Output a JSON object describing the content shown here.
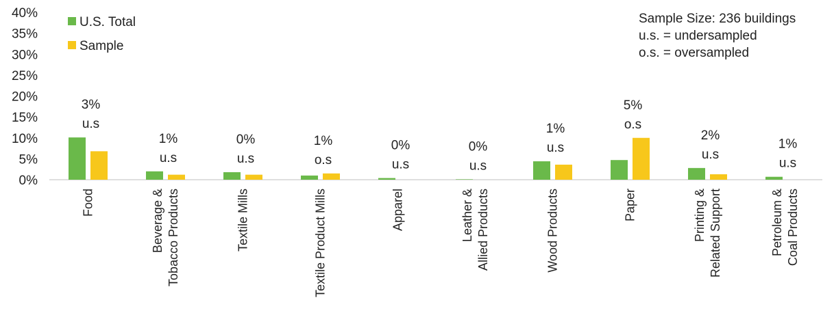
{
  "chart_data": {
    "type": "bar",
    "categories": [
      [
        "Food"
      ],
      [
        "Beverage &",
        "Tobacco Products"
      ],
      [
        "Textile Mills"
      ],
      [
        "Textile Product Mills"
      ],
      [
        "Apparel"
      ],
      [
        "Leather &",
        "Allied Products"
      ],
      [
        "Wood Products"
      ],
      [
        "Paper"
      ],
      [
        "Printing &",
        "Related Support"
      ],
      [
        "Petroleum &",
        "Coal Products"
      ]
    ],
    "series": [
      {
        "name": "U.S. Total",
        "color": "#6ab94a",
        "values": [
          10.1,
          2.0,
          1.8,
          1.0,
          0.4,
          0.1,
          4.4,
          4.7,
          2.8,
          0.7
        ]
      },
      {
        "name": "Sample",
        "color": "#f7c71b",
        "values": [
          6.8,
          1.2,
          1.2,
          1.5,
          0.0,
          0.0,
          3.6,
          10.0,
          1.3,
          0.0
        ]
      }
    ],
    "annotations": [
      {
        "value": "3%",
        "status": "u.s"
      },
      {
        "value": "1%",
        "status": "u.s"
      },
      {
        "value": "0%",
        "status": "u.s"
      },
      {
        "value": "1%",
        "status": "o.s"
      },
      {
        "value": "0%",
        "status": "u.s"
      },
      {
        "value": "0%",
        "status": "u.s"
      },
      {
        "value": "1%",
        "status": "u.s"
      },
      {
        "value": "5%",
        "status": "o.s"
      },
      {
        "value": "2%",
        "status": "u.s"
      },
      {
        "value": "1%",
        "status": "u.s"
      }
    ],
    "y_ticks": [
      "0%",
      "5%",
      "10%",
      "15%",
      "20%",
      "25%",
      "30%",
      "35%",
      "40%"
    ],
    "ylim": [
      0,
      40
    ],
    "legend_placement": "top-left",
    "notes": [
      "Sample Size: 236 buildings",
      "u.s. = undersampled",
      "o.s. = oversampled"
    ],
    "grid": false
  }
}
